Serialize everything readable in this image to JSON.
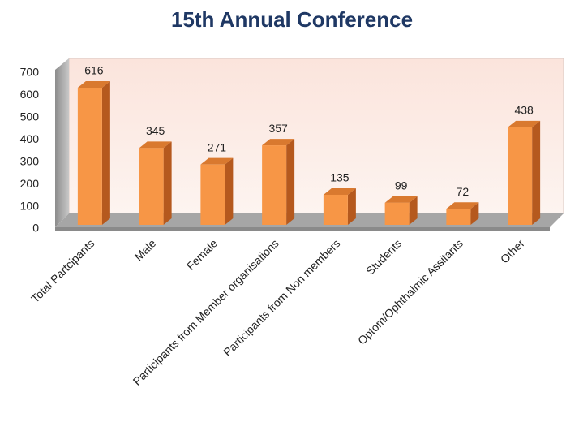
{
  "chart_data": {
    "type": "bar",
    "title": "15th Annual Conference",
    "categories": [
      "Total Partcipants",
      "Male",
      "Female",
      "Participants from Member organisations",
      "Participants from Non members",
      "Students",
      "Optom/Ophthalmic Assitants",
      "Other"
    ],
    "values": [
      616,
      345,
      271,
      357,
      135,
      99,
      72,
      438
    ],
    "color": "#f79646",
    "ylim": [
      0,
      700
    ],
    "yticks": [
      0,
      100,
      200,
      300,
      400,
      500,
      600,
      700
    ]
  }
}
